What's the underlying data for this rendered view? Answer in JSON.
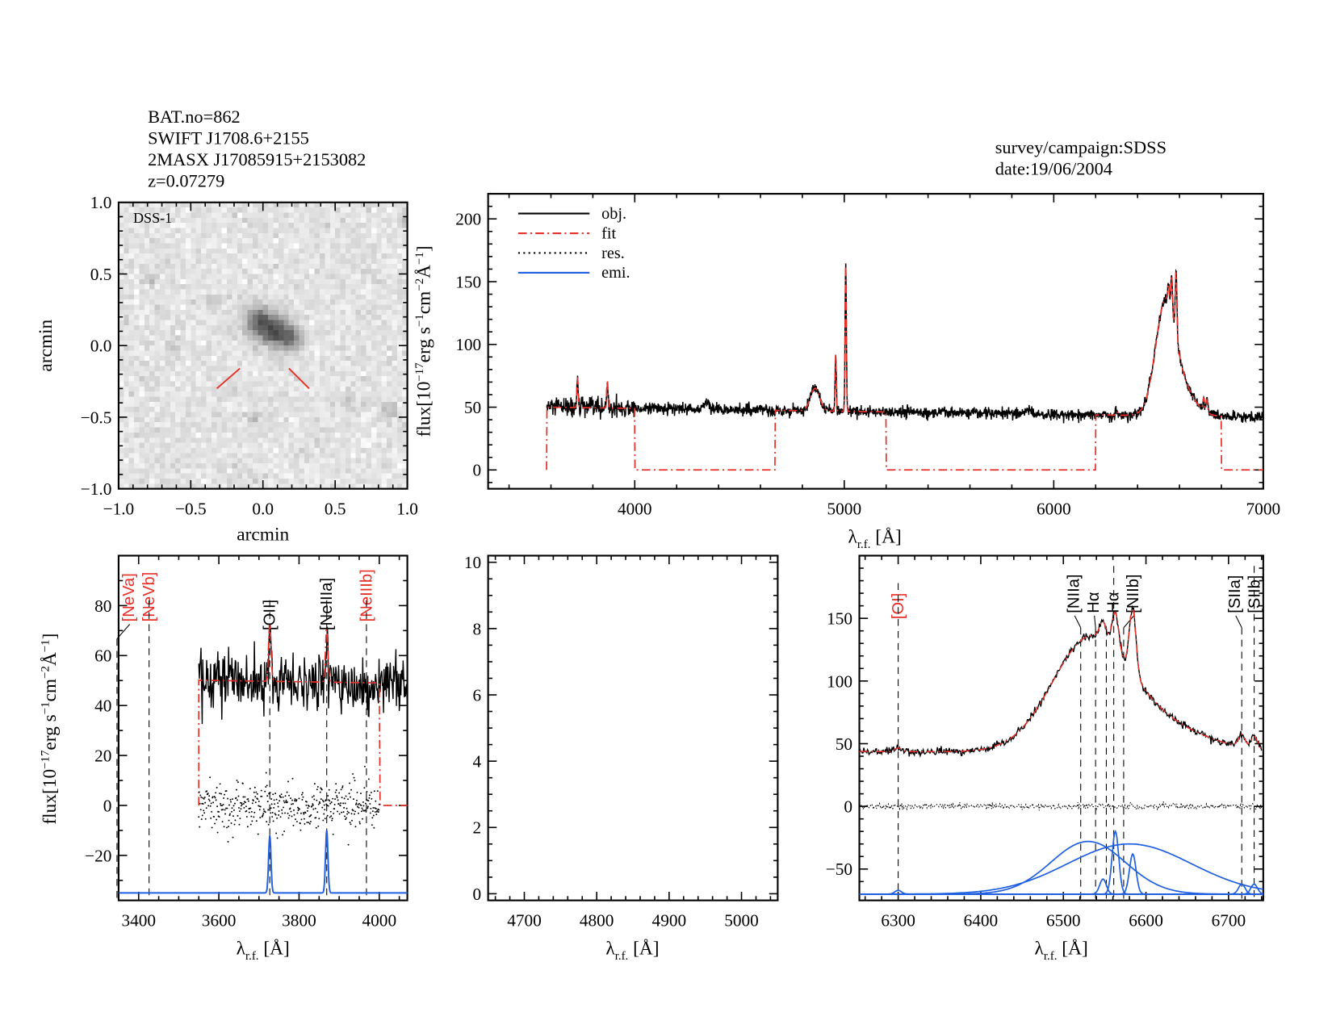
{
  "header": {
    "lines": [
      "BAT.no=862",
      "SWIFT J1708.6+2155",
      "2MASX J17085915+2153082",
      "z=0.07279"
    ],
    "survey": "survey/campaign:SDSS",
    "date": "date:19/06/2004"
  },
  "image_panel": {
    "label": "DSS-1",
    "xlabel": "arcmin",
    "ylabel": "arcmin",
    "xlim": [
      -1.0,
      1.0
    ],
    "ylim": [
      -1.0,
      1.0
    ],
    "xticks": [
      "−1.0",
      "−0.5",
      "0.0",
      "0.5",
      "1.0"
    ],
    "yticks": [
      "−1.0",
      "−0.5",
      "0.0",
      "0.5",
      "1.0"
    ],
    "marker_color": "#e8302a"
  },
  "colors": {
    "obj": "#000000",
    "fit": "#e8302a",
    "res": "#000000",
    "emi": "#1f5fe0",
    "red_label": "#e8302a"
  },
  "flux_label": [
    "flux[10",
    "−17",
    "erg s",
    "−1",
    "cm",
    "−2",
    "Å",
    "−1",
    "]"
  ],
  "wave_label": [
    "λ",
    "r.f.",
    " [Å]"
  ],
  "chart_data": [
    {
      "type": "line",
      "panel": "full-spectrum",
      "xlim": [
        3300,
        7000
      ],
      "ylim": [
        -15,
        220
      ],
      "xticks": [
        4000,
        5000,
        6000,
        7000
      ],
      "yticks": [
        0,
        50,
        100,
        150,
        200
      ],
      "legend": {
        "placement": "top-left",
        "entries": [
          {
            "name": "obj.",
            "style": "solid",
            "color": "#000000"
          },
          {
            "name": "fit",
            "style": "dash-dot",
            "color": "#e8302a"
          },
          {
            "name": "res.",
            "style": "dotted",
            "color": "#000000"
          },
          {
            "name": "emi.",
            "style": "solid",
            "color": "#1f5fe0"
          }
        ]
      },
      "obj_range": [
        3580,
        7000
      ],
      "fit_regions": [
        [
          3580,
          4000
        ],
        [
          4670,
          5200
        ],
        [
          6200,
          6800
        ]
      ],
      "continuum": [
        [
          3600,
          50
        ],
        [
          7000,
          42
        ]
      ],
      "features": [
        {
          "wave": 3727,
          "peak": 75
        },
        {
          "wave": 3869,
          "peak": 72
        },
        {
          "wave": 4861,
          "peak": 65
        },
        {
          "wave": 4959,
          "peak": 95
        },
        {
          "wave": 5007,
          "peak": 168
        },
        {
          "wave": 6563,
          "peak": 155
        },
        {
          "wave": 6584,
          "peak": 120
        }
      ]
    },
    {
      "type": "line",
      "panel": "blue-zoom",
      "xlim": [
        3350,
        4070
      ],
      "ylim": [
        -38,
        100
      ],
      "xticks": [
        3400,
        3600,
        3800,
        4000
      ],
      "yticks": [
        -20,
        0,
        20,
        40,
        60,
        80
      ],
      "lines": [
        {
          "name": "[NeVa]",
          "wave": 3346,
          "color": "#e8302a"
        },
        {
          "name": "[NeVb]",
          "wave": 3426,
          "color": "#e8302a"
        },
        {
          "name": "[OII]",
          "wave": 3727,
          "color": "#000000"
        },
        {
          "name": "[NeIIIa]",
          "wave": 3869,
          "color": "#000000"
        },
        {
          "name": "[NeIIIb]",
          "wave": 3968,
          "color": "#e8302a"
        }
      ],
      "emi_baseline": -35
    },
    {
      "type": "line",
      "panel": "hbeta-zoom",
      "xlim": [
        4650,
        5050
      ],
      "ylim": [
        -0.2,
        10.2
      ],
      "xticks": [
        4700,
        4800,
        4900,
        5000
      ],
      "yticks": [
        0,
        2,
        4,
        6,
        8,
        10
      ]
    },
    {
      "type": "line",
      "panel": "halpha-zoom",
      "xlim": [
        6253,
        6742
      ],
      "ylim": [
        -75,
        200
      ],
      "xticks": [
        6300,
        6400,
        6500,
        6600,
        6700
      ],
      "yticks": [
        -50,
        0,
        50,
        100,
        150
      ],
      "lines": [
        {
          "name": "[OI]",
          "wave": 6300,
          "color": "#e8302a"
        },
        {
          "name": "[NIIa]",
          "wave": 6521,
          "color": "#000000"
        },
        {
          "name": "Hα",
          "wave": 6539,
          "color": "#000000"
        },
        {
          "name": "",
          "wave": 6552,
          "color": "#000000"
        },
        {
          "name": "Hα",
          "wave": 6561,
          "color": "#000000"
        },
        {
          "name": "[NIIb]",
          "wave": 6573,
          "color": "#000000"
        },
        {
          "name": "[SIIa]",
          "wave": 6716,
          "color": "#000000"
        },
        {
          "name": "[SIIb]",
          "wave": 6731,
          "color": "#000000"
        }
      ],
      "emi_baseline": -70
    }
  ]
}
